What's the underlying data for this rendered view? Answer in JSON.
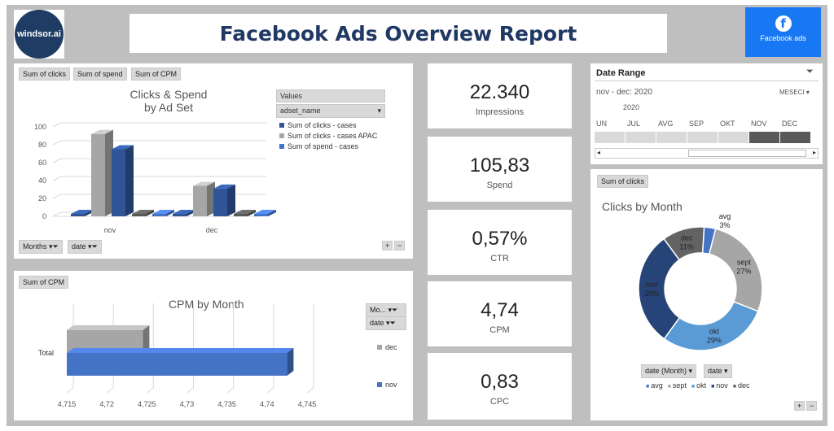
{
  "header": {
    "logo_text": "windsor.ai",
    "title": "Facebook Ads Overview Report",
    "fb_label": "Facebook ads",
    "fb_glyph": "f"
  },
  "clicks_spend": {
    "buttons": [
      "Sum of clicks",
      "Sum of spend",
      "Sum of CPM"
    ],
    "title_line1": "Clicks & Spend",
    "title_line2": "by Ad Set",
    "values_header": "Values",
    "dropdown_label": "adset_name",
    "legend": [
      {
        "label": "Sum of clicks - cases",
        "color": "#2f5597"
      },
      {
        "label": "Sum of clicks - cases APAC",
        "color": "#a6a6a6"
      },
      {
        "label": "Sum of spend - cases",
        "color": "#4472c4"
      }
    ],
    "filters": [
      "Months",
      "date"
    ],
    "plus": "+",
    "minus": "−"
  },
  "cpm": {
    "button": "Sum of CPM",
    "title": "CPM by Month",
    "y_label": "Total",
    "filters": [
      "Mo...",
      "date"
    ],
    "legend": [
      {
        "label": "dec",
        "color": "#a6a6a6"
      },
      {
        "label": "nov",
        "color": "#4472c4"
      }
    ]
  },
  "kpis": [
    {
      "value": "22.340",
      "label": "Impressions"
    },
    {
      "value": "105,83",
      "label": "Spend"
    },
    {
      "value": "0,57%",
      "label": "CTR"
    },
    {
      "value": "4,74",
      "label": "CPM"
    },
    {
      "value": "0,83",
      "label": "CPC"
    }
  ],
  "date_range": {
    "title": "Date Range",
    "range": "nov - dec: 2020",
    "unit": "MESECI",
    "year": "2020",
    "months": [
      "UN",
      "JUL",
      "AVG",
      "SEP",
      "OKT",
      "NOV",
      "DEC"
    ],
    "selected_months": [
      "NOV",
      "DEC"
    ]
  },
  "clicks_month": {
    "button": "Sum of clicks",
    "title": "Clicks by Month",
    "filters": [
      "date (Month)",
      "date"
    ],
    "legend": [
      {
        "label": "avg",
        "color": "#4472c4"
      },
      {
        "label": "sept",
        "color": "#a6a6a6"
      },
      {
        "label": "okt",
        "color": "#5b9bd5"
      },
      {
        "label": "nov",
        "color": "#264478"
      },
      {
        "label": "dec",
        "color": "#636363"
      }
    ],
    "plus": "+",
    "minus": "−"
  },
  "chart_data": [
    {
      "type": "bar",
      "title": "Clicks & Spend by Ad Set",
      "categories": [
        "nov",
        "dec"
      ],
      "series": [
        {
          "name": "Sum of clicks - cases",
          "values": [
            1,
            1
          ]
        },
        {
          "name": "Sum of clicks - cases APAC",
          "values": [
            92,
            34
          ]
        },
        {
          "name": "Sum of spend - cases",
          "values": [
            75,
            31
          ]
        },
        {
          "name": "",
          "values": [
            2,
            1
          ]
        },
        {
          "name": "",
          "values": [
            2,
            2
          ]
        }
      ],
      "y_ticks": [
        "100",
        "80",
        "60",
        "40",
        "20",
        "0"
      ],
      "ylim": [
        0,
        100
      ]
    },
    {
      "type": "bar",
      "title": "CPM by Month",
      "categories": [
        "Total"
      ],
      "series": [
        {
          "name": "dec",
          "values": [
            4.7245
          ]
        },
        {
          "name": "nov",
          "values": [
            4.7425
          ]
        }
      ],
      "x_ticks": [
        "4,715",
        "4,72",
        "4,725",
        "4,73",
        "4,735",
        "4,74",
        "4,745"
      ],
      "xlim": [
        4.715,
        4.745
      ]
    },
    {
      "type": "pie",
      "title": "Clicks by Month",
      "slices": [
        {
          "label": "avg",
          "pct_label": "3%",
          "value": 3
        },
        {
          "label": "sept",
          "pct_label": "27%",
          "value": 27
        },
        {
          "label": "okt",
          "pct_label": "29%",
          "value": 29
        },
        {
          "label": "nov",
          "pct_label": "30%",
          "value": 30
        },
        {
          "label": "dec",
          "pct_label": "11%",
          "value": 11
        }
      ]
    }
  ]
}
